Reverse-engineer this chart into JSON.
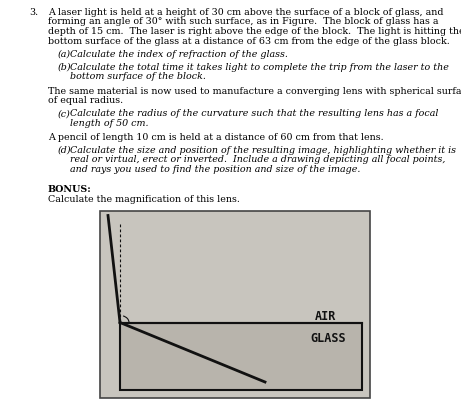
{
  "text_color": "#000000",
  "diagram_bg": "#c8c5be",
  "glass_fill": "#b8b4ac",
  "line_color": "#111111",
  "air_label": "AIR",
  "glass_label": "GLASS",
  "main_para": "A laser light is held at a height of 30 cm above the surface of a block of glass, and forming an angle of 30° with such surface, as in Figure.  The block of glass has a depth of 15 cm.  The laser is right above the edge of the block.  The light is hitting the bottom surface of the glass at a distance of 63 cm from the edge of the glass block.",
  "part_a": "Calculate the index of refraction of the glass.",
  "part_b1": "Calculate the total time it takes light to complete the trip from the laser to the",
  "part_b2": "bottom surface of the block.",
  "trans": "The same material is now used to manufacture a converging lens with spherical surfaces of equal radius.",
  "part_c1": "Calculate the radius of the curvature such that the resulting lens has a focal",
  "part_c2": "length of 50 cm.",
  "pencil": "A pencil of length 10 cm is held at a distance of 60 cm from that lens.",
  "part_d1": "Calculate the size and position of the resulting image, highlighting whether it is",
  "part_d2": "real or virtual, erect or inverted.  Include a drawing depicting all focal points,",
  "part_d3": "and rays you used to find the position and size of the image.",
  "bonus_head": "BONUS:",
  "bonus_body": "Calculate the magnification of this lens.",
  "num_label": "3.",
  "indent_a": "   (a)",
  "indent_b": "   (b)",
  "indent_c": "   (c)",
  "indent_d": "   (d)"
}
